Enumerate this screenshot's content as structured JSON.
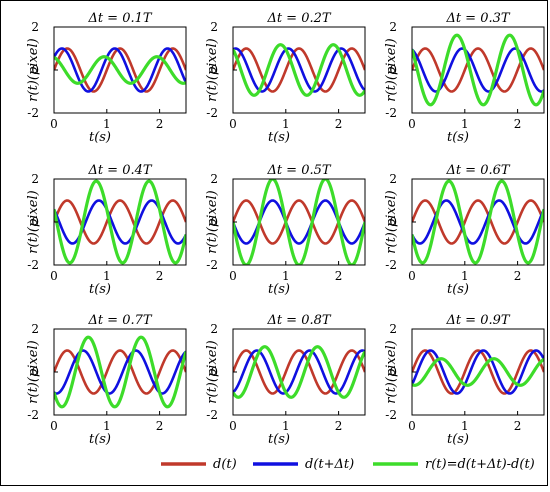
{
  "chart_data": {
    "type": "line",
    "colors": {
      "d": "#c0392b",
      "d_shift": "#1010e0",
      "r": "#3ddc2a"
    },
    "legend": {
      "placement": "bottom",
      "entries": [
        {
          "key": "d",
          "label": "d(t)"
        },
        {
          "key": "d_shift",
          "label": "d(t+Δt)"
        },
        {
          "key": "r",
          "label": "r(t)=d(t+Δt)-d(t)"
        }
      ]
    },
    "xlabel": "t(s)",
    "ylabel": "r(t)(pixel)",
    "xlim": [
      0,
      2.5
    ],
    "ylim": [
      -2,
      2
    ],
    "xticks": [
      0,
      1,
      2
    ],
    "yticks": [
      -2,
      0,
      2
    ],
    "period_T": 1,
    "panels": [
      {
        "title": "Δt = 0.1T",
        "dt": 0.1
      },
      {
        "title": "Δt = 0.2T",
        "dt": 0.2
      },
      {
        "title": "Δt = 0.3T",
        "dt": 0.3
      },
      {
        "title": "Δt = 0.4T",
        "dt": 0.4
      },
      {
        "title": "Δt = 0.5T",
        "dt": 0.5
      },
      {
        "title": "Δt = 0.6T",
        "dt": 0.6
      },
      {
        "title": "Δt = 0.7T",
        "dt": 0.7
      },
      {
        "title": "Δt = 0.8T",
        "dt": 0.8
      },
      {
        "title": "Δt = 0.9T",
        "dt": 0.9
      }
    ]
  }
}
